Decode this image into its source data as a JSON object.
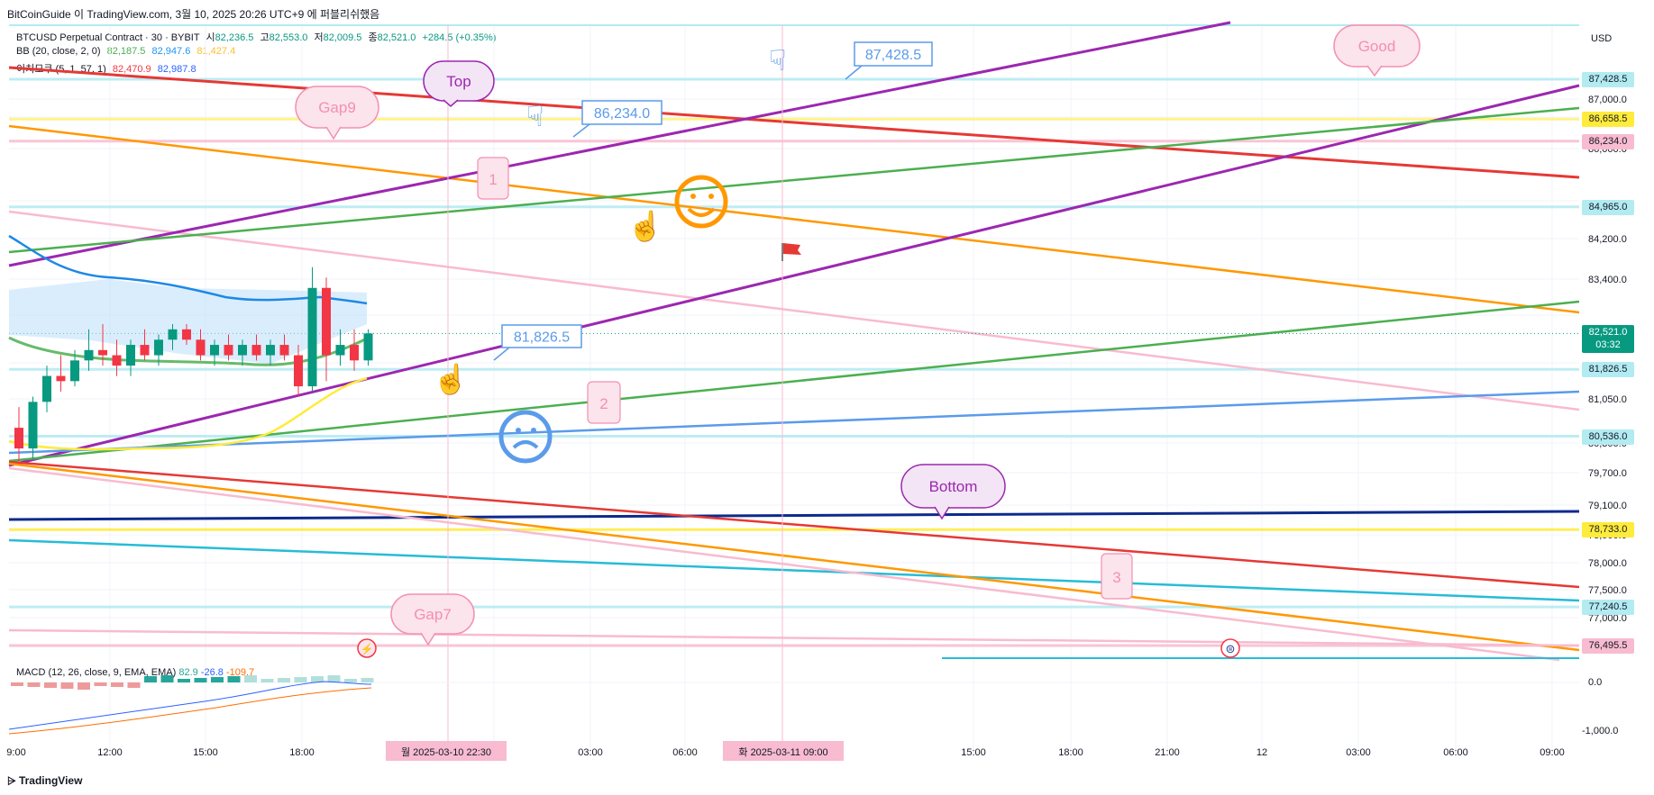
{
  "header": {
    "publish_line": "BitCoinGuide 이 TradingView.com, 3월 10, 2025 20:26 UTC+9 에 퍼블리쉬했음"
  },
  "symbol": {
    "title": "BTCUSD Perpetual Contract · 30 · BYBIT",
    "o_label": "시",
    "o": "82,236.5",
    "h_label": "고",
    "h": "82,553.0",
    "l_label": "저",
    "l": "82,009.5",
    "c_label": "종",
    "c": "82,521.0",
    "change": "+284.5 (+0.35%)"
  },
  "indicators": {
    "bb": {
      "label": "BB (20, close, 2, 0)",
      "v1": "82,187.5",
      "v2": "82,947.6",
      "v3": "81,427.4",
      "c1": "#4caf50",
      "c2": "#2196f3",
      "c3": "#fbc02d"
    },
    "ichimoku": {
      "label": "이치모쿠 (5, 1, 57, 1)",
      "v1": "82,470.9",
      "v2": "82,987.8",
      "c1": "#f23645",
      "c2": "#2962ff"
    },
    "macd": {
      "label": "MACD (12, 26, close, 9, EMA, EMA)",
      "v1": "82.9",
      "v2": "-26.8",
      "v3": "-109.7"
    }
  },
  "currency": "USD",
  "colors": {
    "up": "#089981",
    "down": "#f23645",
    "purple": "#9c27b0",
    "green": "#4caf50",
    "orange": "#ff9800",
    "red": "#e53935",
    "pink": "#f8bbd0",
    "blue": "#5b9bea",
    "navy": "#0d2a8c",
    "cyan": "#26bcd7",
    "yellow": "#ffeb3b"
  },
  "chart_data": {
    "type": "line",
    "title": "",
    "ylim": [
      75400,
      88400
    ],
    "y_ticks": [
      "87,000.0",
      "86,000.0",
      "84,200.0",
      "83,400.0",
      "81,050.0",
      "80,300.0",
      "79,700.0",
      "79,100.0",
      "78,500.0",
      "78,000.0",
      "77,500.0",
      "77,000.0"
    ],
    "macd_ticks": [
      "0.0",
      "-1,000.0"
    ],
    "x_ticks": [
      "9:00",
      "12:00",
      "15:00",
      "18:00",
      "03:00",
      "06:00",
      "15:00",
      "18:00",
      "21:00",
      "12",
      "03:00",
      "06:00",
      "09:00"
    ],
    "crosshair_labels": [
      "월 2025-03-10  22:30",
      "화 2025-03-11  09:00"
    ],
    "horizontal_levels": [
      {
        "price": "87,428.5",
        "value": 87428.5,
        "color": "#b2ebf2",
        "tag_bg": "#b2ebf2",
        "tag_fg": "#131722"
      },
      {
        "price": "86,658.5",
        "value": 86658.5,
        "color": "#fff176",
        "tag_bg": "#ffeb3b",
        "tag_fg": "#131722"
      },
      {
        "price": "86,234.0",
        "value": 86234,
        "color": "#f8bbd0",
        "tag_bg": "#f8bbd0",
        "tag_fg": "#131722"
      },
      {
        "price": "84,965.0",
        "value": 84965,
        "color": "#b2ebf2",
        "tag_bg": "#b2ebf2",
        "tag_fg": "#131722"
      },
      {
        "price": "81,826.5",
        "value": 81826.5,
        "color": "#b2ebf2",
        "tag_bg": "#b2ebf2",
        "tag_fg": "#131722"
      },
      {
        "price": "80,536.0",
        "value": 80536,
        "color": "#b2ebf2",
        "tag_bg": "#b2ebf2",
        "tag_fg": "#131722"
      },
      {
        "price": "78,733.0",
        "value": 78733,
        "color": "#ffeb3b",
        "tag_bg": "#ffeb3b",
        "tag_fg": "#131722"
      },
      {
        "price": "77,240.5",
        "value": 77240.5,
        "color": "#b2ebf2",
        "tag_bg": "#b2ebf2",
        "tag_fg": "#131722"
      },
      {
        "price": "76,495.5",
        "value": 76495.5,
        "color": "#f8bbd0",
        "tag_bg": "#f8bbd0",
        "tag_fg": "#131722"
      }
    ],
    "current_price": {
      "price": "82,521.0",
      "timer": "03:32",
      "value": 82521
    },
    "annotations": {
      "top": "Top",
      "bottom": "Bottom",
      "good": "Good",
      "gap9": "Gap9",
      "gap7": "Gap7",
      "num1": "1",
      "num2": "2",
      "num3": "3",
      "callout1": "87,428.5",
      "callout2": "86,234.0",
      "callout3": "81,826.5"
    },
    "candles": [
      [
        80700,
        81100,
        80000,
        80300
      ],
      [
        80300,
        81300,
        80100,
        81200
      ],
      [
        81200,
        81900,
        81000,
        81700
      ],
      [
        81700,
        82100,
        81400,
        81600
      ],
      [
        81600,
        82200,
        81500,
        82000
      ],
      [
        82000,
        82600,
        81800,
        82200
      ],
      [
        82200,
        82700,
        81900,
        82100
      ],
      [
        82100,
        82400,
        81700,
        81900
      ],
      [
        81900,
        82400,
        81700,
        82300
      ],
      [
        82300,
        82600,
        82000,
        82100
      ],
      [
        82100,
        82500,
        81900,
        82400
      ],
      [
        82400,
        82700,
        82200,
        82600
      ],
      [
        82600,
        82700,
        82300,
        82400
      ],
      [
        82400,
        82600,
        82000,
        82100
      ],
      [
        82100,
        82400,
        81900,
        82300
      ],
      [
        82300,
        82500,
        82000,
        82100
      ],
      [
        82100,
        82400,
        81900,
        82300
      ],
      [
        82300,
        82500,
        82000,
        82100
      ],
      [
        82100,
        82400,
        81900,
        82300
      ],
      [
        82300,
        82500,
        82000,
        82100
      ],
      [
        82100,
        82300,
        81300,
        81500
      ],
      [
        81500,
        83800,
        81400,
        83400
      ],
      [
        83400,
        83600,
        81600,
        82100
      ],
      [
        82100,
        82600,
        81900,
        82300
      ],
      [
        82300,
        82600,
        81800,
        82000
      ],
      [
        82000,
        82600,
        81900,
        82521
      ]
    ]
  }
}
